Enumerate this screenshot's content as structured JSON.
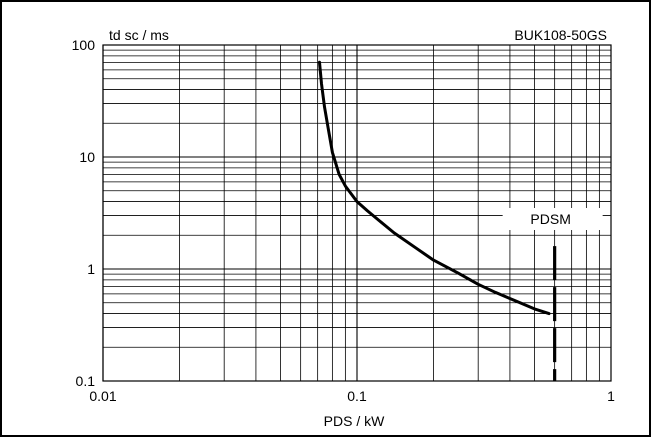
{
  "chart_data": {
    "type": "line",
    "title": "BUK108-50GS",
    "xlabel": "PDS / kW",
    "ylabel": "td sc / ms",
    "xscale": "log",
    "yscale": "log",
    "xlim": [
      0.01,
      1
    ],
    "ylim": [
      0.1,
      100
    ],
    "grid": true,
    "x_ticks": [
      0.01,
      0.1,
      1
    ],
    "x_tick_labels": [
      "0.01",
      "0.1",
      "1"
    ],
    "y_ticks": [
      0.1,
      1,
      10,
      100
    ],
    "y_tick_labels": [
      "0.1",
      "1",
      "10",
      "100"
    ],
    "series": [
      {
        "x": [
          0.0712,
          0.0725,
          0.0745,
          0.077,
          0.08,
          0.085,
          0.09,
          0.1,
          0.11,
          0.12,
          0.14,
          0.17,
          0.2,
          0.25,
          0.3,
          0.35,
          0.42,
          0.5,
          0.57
        ],
        "y": [
          70,
          45,
          28,
          18,
          11,
          7,
          5.5,
          4.0,
          3.3,
          2.8,
          2.1,
          1.55,
          1.2,
          0.92,
          0.73,
          0.62,
          0.52,
          0.44,
          0.4
        ]
      }
    ],
    "annotations": [
      {
        "text": "PDSM",
        "x": 0.6,
        "style": "dashed vertical line",
        "y_range": [
          0.1,
          1.6
        ]
      }
    ]
  }
}
